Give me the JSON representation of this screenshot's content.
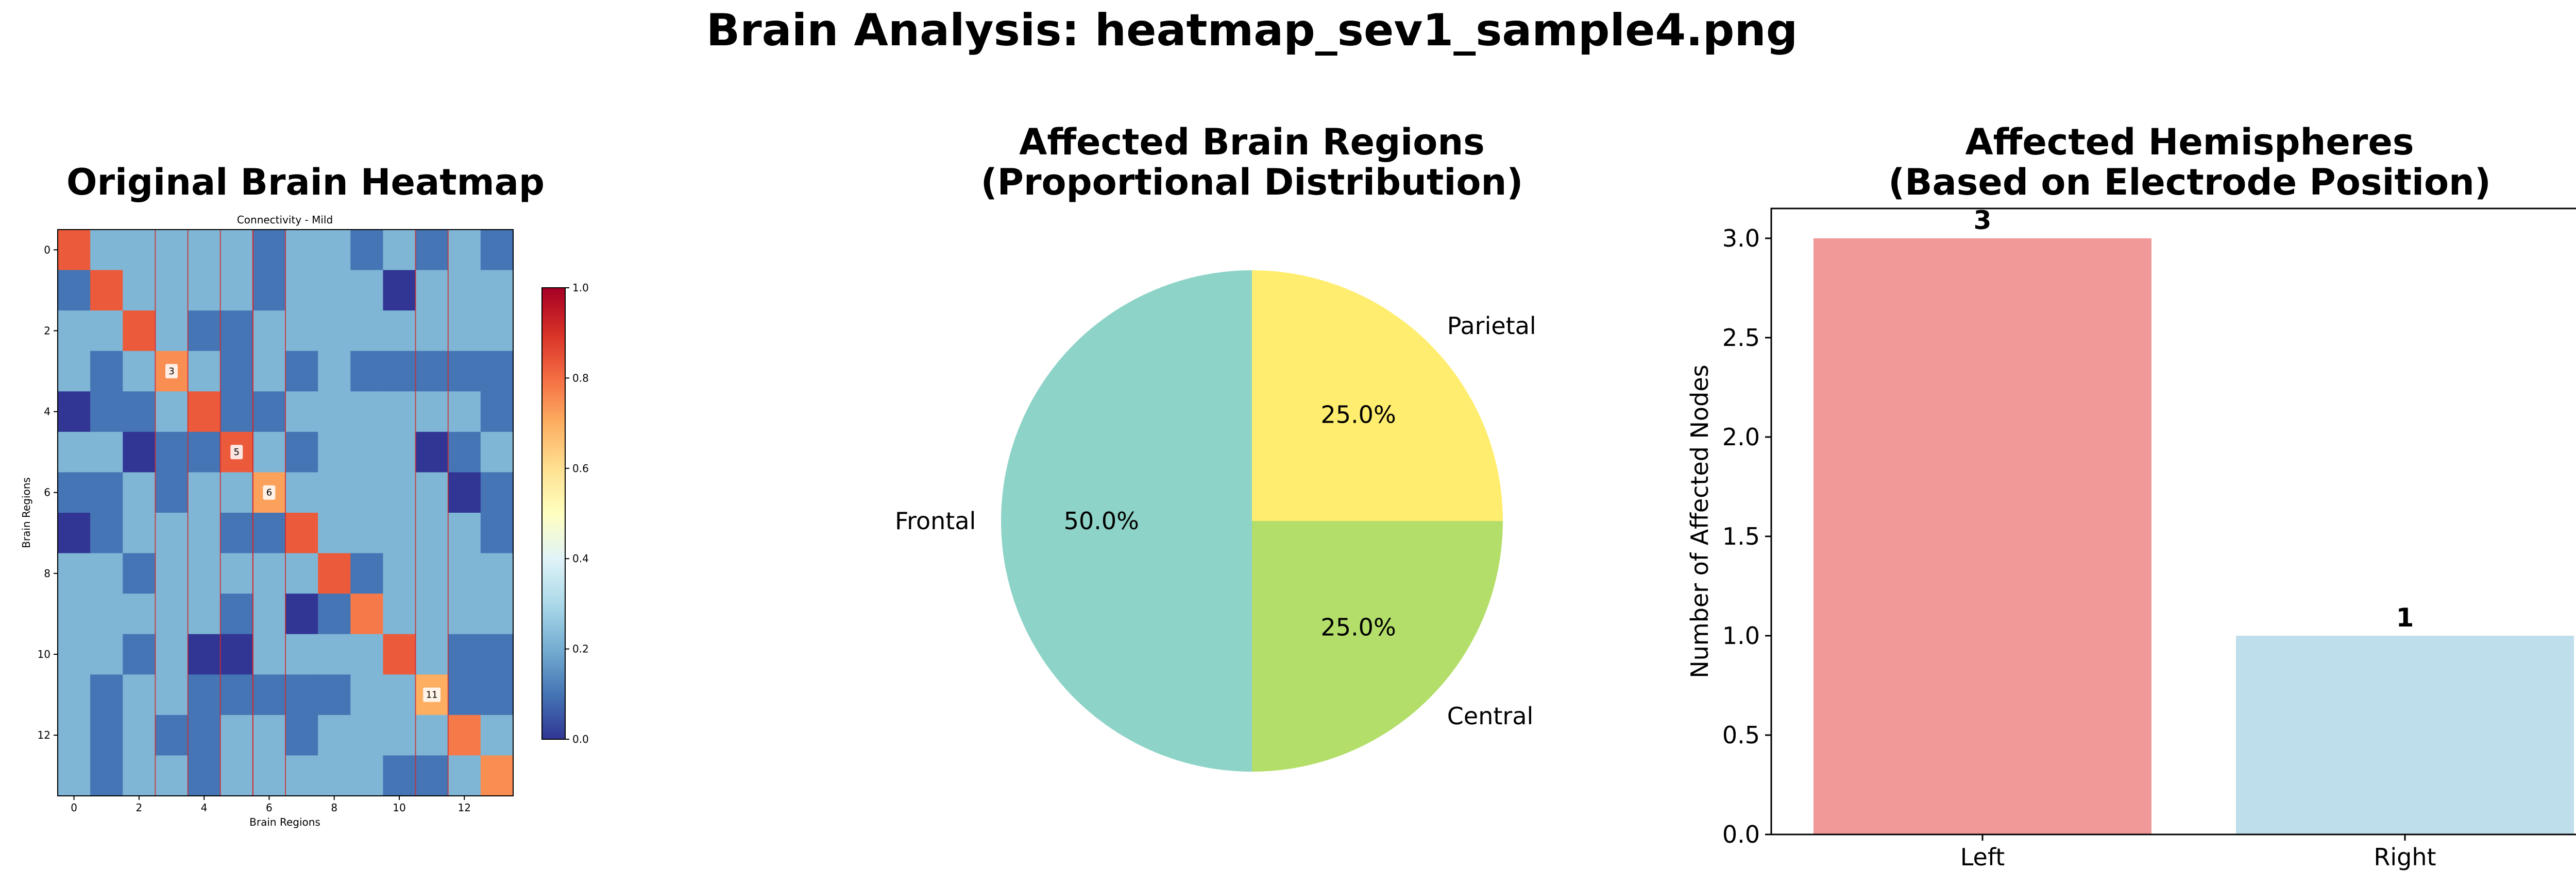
{
  "figure": {
    "title": "Brain Analysis: heatmap_sev1_sample4.png"
  },
  "panels": {
    "heatmap_title": "Original Brain Heatmap",
    "pie_title_line1": "Affected Brain Regions",
    "pie_title_line2": "(Proportional Distribution)",
    "bar_title_line1": "Affected Hemispheres",
    "bar_title_line2": "(Based on Electrode Position)"
  },
  "chart_data": [
    {
      "type": "heatmap",
      "title": "Connectivity - Mild",
      "xlabel": "Brain Regions",
      "ylabel": "Brain Regions",
      "size": 14,
      "x_ticks": [
        "0",
        "2",
        "4",
        "6",
        "8",
        "10",
        "12"
      ],
      "y_ticks": [
        "0",
        "2",
        "4",
        "6",
        "8",
        "10",
        "12"
      ],
      "colormap": "RdYlBu_r",
      "clim": [
        0,
        1
      ],
      "colorbar_ticks": [
        "0.0",
        "0.2",
        "0.4",
        "0.6",
        "0.8",
        "1.0"
      ],
      "highlighted_columns": [
        3,
        5,
        6,
        11
      ],
      "annotations": [
        {
          "row": 3,
          "col": 3,
          "text": "3"
        },
        {
          "row": 5,
          "col": 5,
          "text": "5"
        },
        {
          "row": 6,
          "col": 6,
          "text": "6"
        },
        {
          "row": 11,
          "col": 11,
          "text": "11"
        }
      ],
      "values": [
        [
          0.83,
          0.22,
          0.22,
          0.22,
          0.22,
          0.22,
          0.1,
          0.22,
          0.22,
          0.1,
          0.22,
          0.1,
          0.22,
          0.1
        ],
        [
          0.1,
          0.83,
          0.22,
          0.22,
          0.22,
          0.22,
          0.1,
          0.22,
          0.22,
          0.22,
          0.0,
          0.22,
          0.22,
          0.22
        ],
        [
          0.22,
          0.22,
          0.83,
          0.22,
          0.1,
          0.1,
          0.22,
          0.22,
          0.22,
          0.22,
          0.22,
          0.22,
          0.22,
          0.22
        ],
        [
          0.22,
          0.1,
          0.22,
          0.75,
          0.22,
          0.1,
          0.22,
          0.1,
          0.22,
          0.1,
          0.1,
          0.1,
          0.1,
          0.1
        ],
        [
          0.0,
          0.1,
          0.1,
          0.22,
          0.83,
          0.1,
          0.1,
          0.22,
          0.22,
          0.22,
          0.22,
          0.22,
          0.22,
          0.1
        ],
        [
          0.22,
          0.22,
          0.0,
          0.1,
          0.1,
          0.83,
          0.22,
          0.1,
          0.22,
          0.22,
          0.22,
          0.0,
          0.1,
          0.22
        ],
        [
          0.1,
          0.1,
          0.22,
          0.1,
          0.22,
          0.22,
          0.72,
          0.22,
          0.22,
          0.22,
          0.22,
          0.22,
          0.0,
          0.1
        ],
        [
          0.0,
          0.1,
          0.22,
          0.22,
          0.22,
          0.1,
          0.1,
          0.83,
          0.22,
          0.22,
          0.22,
          0.22,
          0.22,
          0.1
        ],
        [
          0.22,
          0.22,
          0.1,
          0.22,
          0.22,
          0.22,
          0.22,
          0.22,
          0.83,
          0.1,
          0.22,
          0.22,
          0.22,
          0.22
        ],
        [
          0.22,
          0.22,
          0.22,
          0.22,
          0.22,
          0.1,
          0.22,
          0.0,
          0.1,
          0.78,
          0.22,
          0.22,
          0.22,
          0.22
        ],
        [
          0.22,
          0.22,
          0.1,
          0.22,
          0.0,
          0.0,
          0.22,
          0.22,
          0.22,
          0.22,
          0.83,
          0.22,
          0.1,
          0.1
        ],
        [
          0.22,
          0.1,
          0.22,
          0.22,
          0.1,
          0.1,
          0.1,
          0.1,
          0.1,
          0.22,
          0.22,
          0.7,
          0.1,
          0.1
        ],
        [
          0.22,
          0.1,
          0.22,
          0.1,
          0.1,
          0.22,
          0.22,
          0.1,
          0.22,
          0.22,
          0.22,
          0.22,
          0.78,
          0.22
        ],
        [
          0.22,
          0.1,
          0.22,
          0.22,
          0.1,
          0.22,
          0.22,
          0.22,
          0.22,
          0.22,
          0.1,
          0.1,
          0.22,
          0.75
        ]
      ]
    },
    {
      "type": "pie",
      "title": "Affected Brain Regions\n(Proportional Distribution)",
      "slices": [
        {
          "label": "Parietal",
          "value": 25.0,
          "pct_label": "25.0%",
          "color": "#ffed6f"
        },
        {
          "label": "Central",
          "value": 25.0,
          "pct_label": "25.0%",
          "color": "#b3de69"
        },
        {
          "label": "Frontal",
          "value": 50.0,
          "pct_label": "50.0%",
          "color": "#8dd3c7"
        }
      ],
      "start_angle_deg": 90,
      "direction": "clockwise"
    },
    {
      "type": "bar",
      "title": "Affected Hemispheres\n(Based on Electrode Position)",
      "categories": [
        "Left",
        "Right"
      ],
      "values": [
        3,
        1
      ],
      "value_labels": [
        "3",
        "1"
      ],
      "colors": [
        "#f19999",
        "#bddeea"
      ],
      "xlabel": "",
      "ylabel": "Number of Affected Nodes",
      "ylim": [
        0,
        3.15
      ],
      "y_ticks": [
        "0.0",
        "0.5",
        "1.0",
        "1.5",
        "2.0",
        "2.5",
        "3.0"
      ]
    }
  ]
}
